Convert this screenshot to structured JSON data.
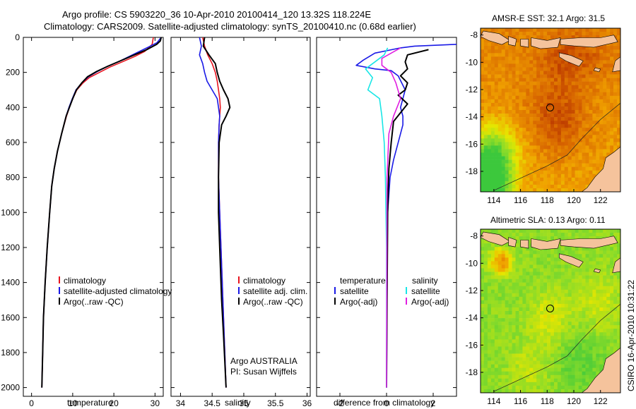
{
  "header": {
    "line1": "Argo profile: CS 5903220_36 10-Apr-2010 20100414_120 13.32S 118.224E",
    "line2": "Climatology: CARS2009. Satellite-adjusted climatology: synTS_20100410.nc (0.68d earlier)"
  },
  "side_text": "CSIRO 16-Apr-2010 10:31:22",
  "colors": {
    "climatology": "#e8141e",
    "satellite": "#1a1ae6",
    "argo": "#000000",
    "sat_salinity": "#18e6e6",
    "argo_salinity": "#e01ee0",
    "land": "#f5c39c"
  },
  "chart_data": [
    {
      "type": "line",
      "id": "temperature",
      "xlabel": "temperature",
      "ylabel": "",
      "xlim": [
        -2,
        32
      ],
      "ylim": [
        2050,
        0
      ],
      "xticks": [
        0,
        10,
        20,
        30
      ],
      "yticks": [
        0,
        200,
        400,
        600,
        800,
        1000,
        1200,
        1400,
        1600,
        1800,
        2000
      ],
      "legend": [
        "climatology",
        "satellite-adjusted climatology",
        "Argo(..raw -QC)"
      ],
      "series": [
        {
          "name": "climatology",
          "color_key": "climatology",
          "x": [
            29.6,
            29.3,
            27.5,
            25,
            22,
            19,
            16.5,
            14,
            12.5,
            11,
            10,
            9.2,
            8.5,
            7.3,
            6.3,
            5.5,
            4.9,
            4.4,
            3.8,
            3.3,
            2.9,
            2.7,
            2.5
          ],
          "y": [
            0,
            40,
            80,
            110,
            140,
            170,
            200,
            230,
            260,
            300,
            350,
            400,
            450,
            550,
            650,
            750,
            850,
            1000,
            1200,
            1400,
            1600,
            1800,
            2000
          ]
        },
        {
          "name": "satellite-adjusted climatology",
          "color_key": "satellite",
          "x": [
            31.5,
            30.5,
            28,
            24.5,
            21.5,
            18.5,
            16,
            13.8,
            12.2,
            10.8,
            9.9,
            9.1,
            8.4,
            7.3,
            6.3,
            5.5,
            4.9,
            4.4,
            3.8,
            3.3,
            2.9,
            2.7,
            2.5
          ],
          "y": [
            0,
            30,
            60,
            100,
            135,
            165,
            195,
            225,
            260,
            300,
            350,
            400,
            450,
            550,
            650,
            750,
            850,
            1000,
            1200,
            1400,
            1600,
            1800,
            2000
          ]
        },
        {
          "name": "Argo(..raw -QC)",
          "color_key": "argo",
          "x": [
            31.5,
            31.3,
            30.4,
            28,
            25,
            21.5,
            18.5,
            15.8,
            13.6,
            12.2,
            10.9,
            10,
            9.2,
            8.4,
            7.3,
            6.3,
            5.5,
            4.9,
            4.4,
            3.8,
            3.3,
            2.9,
            2.7,
            2.5
          ],
          "y": [
            0,
            20,
            40,
            70,
            100,
            135,
            165,
            195,
            225,
            260,
            300,
            350,
            400,
            450,
            550,
            650,
            750,
            850,
            1000,
            1200,
            1400,
            1600,
            1800,
            2000
          ]
        }
      ]
    },
    {
      "type": "line",
      "id": "salinity",
      "xlabel": "salinity",
      "xlim": [
        33.85,
        36.05
      ],
      "ylim": [
        2050,
        0
      ],
      "xticks": [
        34,
        34.5,
        35,
        35.5,
        36
      ],
      "legend": [
        "climatology",
        "satellite adj. clim.",
        "Argo(..raw -QC)"
      ],
      "annotation": [
        "Argo AUSTRALIA",
        "PI: Susan Wijffels"
      ],
      "series": [
        {
          "name": "climatology",
          "color_key": "climatology",
          "x": [
            34.35,
            34.38,
            34.43,
            34.5,
            34.55,
            34.58,
            34.6,
            34.62,
            34.63,
            34.62,
            34.61,
            34.6,
            34.6,
            34.62,
            34.65,
            34.68,
            34.7,
            34.72
          ],
          "y": [
            0,
            50,
            100,
            150,
            200,
            250,
            300,
            350,
            400,
            450,
            500,
            600,
            800,
            1000,
            1300,
            1600,
            1800,
            2000
          ]
        },
        {
          "name": "satellite adj. clim.",
          "color_key": "satellite",
          "x": [
            34.3,
            34.33,
            34.3,
            34.35,
            34.38,
            34.42,
            34.5,
            34.58,
            34.6,
            34.62,
            34.61,
            34.6,
            34.6,
            34.62,
            34.65,
            34.68,
            34.7,
            34.72
          ],
          "y": [
            0,
            50,
            100,
            150,
            200,
            250,
            300,
            350,
            400,
            450,
            500,
            600,
            800,
            1000,
            1300,
            1600,
            1800,
            2000
          ]
        },
        {
          "name": "Argo(..raw -QC)",
          "color_key": "argo",
          "x": [
            34.38,
            34.36,
            34.45,
            34.55,
            34.58,
            34.62,
            34.68,
            34.75,
            34.78,
            34.72,
            34.65,
            34.61,
            34.6,
            34.6,
            34.62,
            34.65,
            34.68,
            34.7,
            34.72
          ],
          "y": [
            0,
            50,
            100,
            150,
            200,
            250,
            300,
            350,
            400,
            450,
            500,
            600,
            800,
            1000,
            1200,
            1500,
            1700,
            1850,
            2000
          ]
        }
      ]
    },
    {
      "type": "line",
      "id": "difference",
      "xlabel": "difference from climatology",
      "xlim": [
        -3.0,
        3.0
      ],
      "ylim": [
        2050,
        0
      ],
      "xticks": [
        -2,
        0,
        2
      ],
      "legend_titles": [
        "temperature",
        "salinity"
      ],
      "legend": [
        "satellite",
        "Argo(-adj)",
        "satellite",
        "Argo(-adj)"
      ],
      "series": [
        {
          "name": "temperature satellite",
          "color_key": "satellite",
          "x": [
            3.0,
            1.2,
            0.6,
            -0.5,
            -1.0,
            -1.3,
            -0.5,
            0.2,
            0.5,
            0.8,
            0.6,
            0.7,
            0.7,
            0.5,
            0.3,
            0.15,
            0.1,
            0.05,
            0.03,
            0.02,
            0.01,
            0.0
          ],
          "y": [
            40,
            50,
            60,
            90,
            130,
            160,
            180,
            190,
            220,
            300,
            400,
            450,
            500,
            600,
            700,
            800,
            900,
            1000,
            1200,
            1500,
            1800,
            2000
          ]
        },
        {
          "name": "temperature Argo(-adj)",
          "color_key": "argo",
          "x": [
            1.8,
            0.9,
            0.8,
            0.9,
            0.6,
            0.9,
            0.8,
            0.5,
            0.9,
            0.3,
            0.2,
            0.1,
            0.05,
            0.02,
            0.0
          ],
          "y": [
            70,
            100,
            140,
            180,
            220,
            260,
            300,
            330,
            380,
            480,
            600,
            750,
            1000,
            1500,
            2000
          ]
        },
        {
          "name": "salinity satellite",
          "color_key": "sat_salinity",
          "x": [
            0.05,
            -0.1,
            -0.5,
            -0.9,
            -0.6,
            -0.8,
            -0.3,
            -0.2,
            -0.1,
            -0.05,
            0.0,
            0.0
          ],
          "y": [
            60,
            100,
            140,
            180,
            230,
            300,
            350,
            450,
            600,
            800,
            1200,
            2000
          ]
        },
        {
          "name": "salinity Argo(-adj)",
          "color_key": "argo_salinity",
          "x": [
            0.6,
            0.2,
            -0.2,
            -0.2,
            0.2,
            0.4,
            0.6,
            0.3,
            0.1,
            0.02,
            0.0
          ],
          "y": [
            60,
            90,
            120,
            160,
            200,
            260,
            350,
            450,
            550,
            800,
            2000
          ]
        }
      ]
    },
    {
      "type": "heatmap",
      "id": "sst_map",
      "title": "AMSR-E SST: 32.1 Argo: 31.5",
      "xticks": [
        114,
        116,
        118,
        120,
        122
      ],
      "yticks": [
        -8,
        -10,
        -12,
        -14,
        -16,
        -18
      ],
      "xlim": [
        113,
        123.5
      ],
      "ylim": [
        -19.5,
        -7.5
      ],
      "marker": {
        "lon": 118.224,
        "lat": -13.32
      }
    },
    {
      "type": "heatmap",
      "id": "sla_map",
      "title": "Altimetric SLA: 0.13 Argo: 0.11",
      "xticks": [
        114,
        116,
        118,
        120,
        122
      ],
      "yticks": [
        -8,
        -10,
        -12,
        -14,
        -16,
        -18
      ],
      "xlim": [
        113,
        123.5
      ],
      "ylim": [
        -19.5,
        -7.5
      ],
      "marker": {
        "lon": 118.224,
        "lat": -13.32
      }
    }
  ]
}
